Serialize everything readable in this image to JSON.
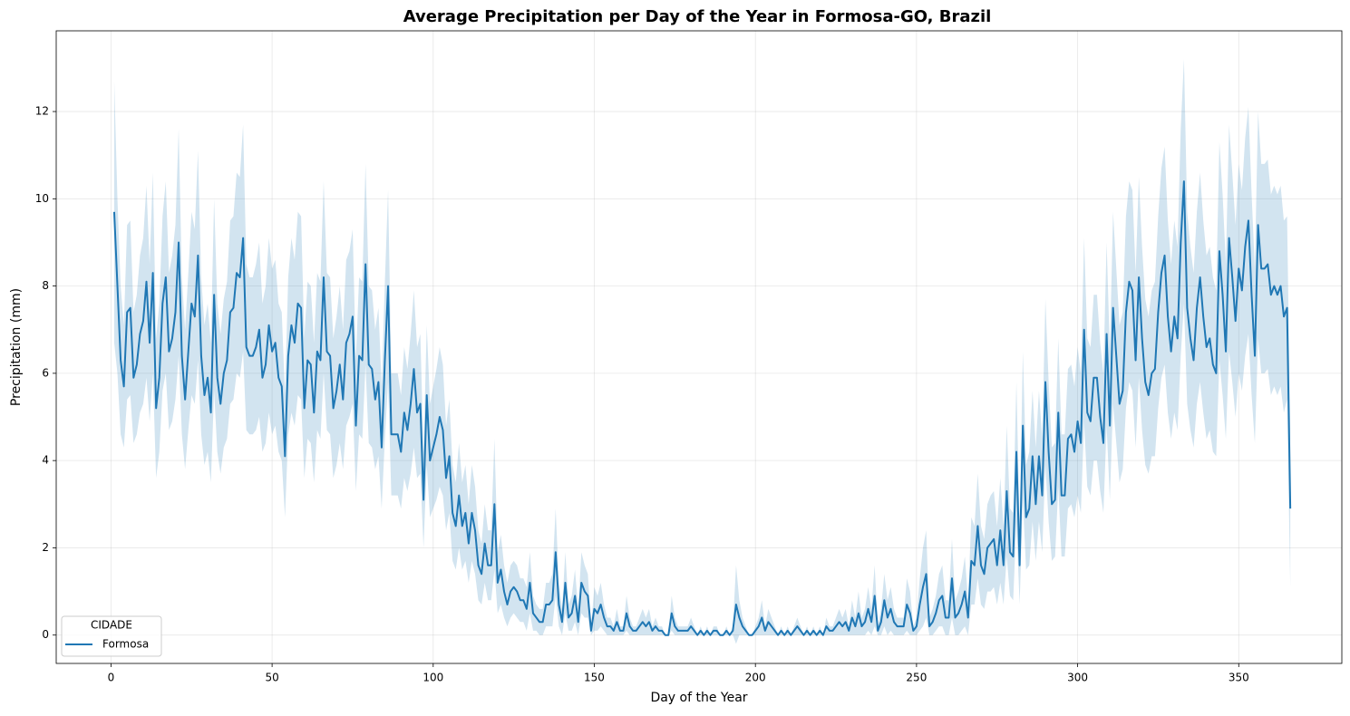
{
  "chart_data": {
    "type": "line",
    "title": "Average Precipitation per Day of the Year in Formosa-GO, Brazil",
    "xlabel": "Day of the Year",
    "ylabel": "Precipitation (mm)",
    "x": [
      1,
      2,
      3,
      4,
      5,
      6,
      7,
      8,
      9,
      10,
      11,
      12,
      13,
      14,
      15,
      16,
      17,
      18,
      19,
      20,
      21,
      22,
      23,
      24,
      25,
      26,
      27,
      28,
      29,
      30,
      31,
      32,
      33,
      34,
      35,
      36,
      37,
      38,
      39,
      40,
      41,
      42,
      43,
      44,
      45,
      46,
      47,
      48,
      49,
      50,
      51,
      52,
      53,
      54,
      55,
      56,
      57,
      58,
      59,
      60,
      61,
      62,
      63,
      64,
      65,
      66,
      67,
      68,
      69,
      70,
      71,
      72,
      73,
      74,
      75,
      76,
      77,
      78,
      79,
      80,
      81,
      82,
      83,
      84,
      85,
      86,
      87,
      88,
      89,
      90,
      91,
      92,
      93,
      94,
      95,
      96,
      97,
      98,
      99,
      100,
      101,
      102,
      103,
      104,
      105,
      106,
      107,
      108,
      109,
      110,
      111,
      112,
      113,
      114,
      115,
      116,
      117,
      118,
      119,
      120,
      121,
      122,
      123,
      124,
      125,
      126,
      127,
      128,
      129,
      130,
      131,
      132,
      133,
      134,
      135,
      136,
      137,
      138,
      139,
      140,
      141,
      142,
      143,
      144,
      145,
      146,
      147,
      148,
      149,
      150,
      151,
      152,
      153,
      154,
      155,
      156,
      157,
      158,
      159,
      160,
      161,
      162,
      163,
      164,
      165,
      166,
      167,
      168,
      169,
      170,
      171,
      172,
      173,
      174,
      175,
      176,
      177,
      178,
      179,
      180,
      181,
      182,
      183,
      184,
      185,
      186,
      187,
      188,
      189,
      190,
      191,
      192,
      193,
      194,
      195,
      196,
      197,
      198,
      199,
      200,
      201,
      202,
      203,
      204,
      205,
      206,
      207,
      208,
      209,
      210,
      211,
      212,
      213,
      214,
      215,
      216,
      217,
      218,
      219,
      220,
      221,
      222,
      223,
      224,
      225,
      226,
      227,
      228,
      229,
      230,
      231,
      232,
      233,
      234,
      235,
      236,
      237,
      238,
      239,
      240,
      241,
      242,
      243,
      244,
      245,
      246,
      247,
      248,
      249,
      250,
      251,
      252,
      253,
      254,
      255,
      256,
      257,
      258,
      259,
      260,
      261,
      262,
      263,
      264,
      265,
      266,
      267,
      268,
      269,
      270,
      271,
      272,
      273,
      274,
      275,
      276,
      277,
      278,
      279,
      280,
      281,
      282,
      283,
      284,
      285,
      286,
      287,
      288,
      289,
      290,
      291,
      292,
      293,
      294,
      295,
      296,
      297,
      298,
      299,
      300,
      301,
      302,
      303,
      304,
      305,
      306,
      307,
      308,
      309,
      310,
      311,
      312,
      313,
      314,
      315,
      316,
      317,
      318,
      319,
      320,
      321,
      322,
      323,
      324,
      325,
      326,
      327,
      328,
      329,
      330,
      331,
      332,
      333,
      334,
      335,
      336,
      337,
      338,
      339,
      340,
      341,
      342,
      343,
      344,
      345,
      346,
      347,
      348,
      349,
      350,
      351,
      352,
      353,
      354,
      355,
      356,
      357,
      358,
      359,
      360,
      361,
      362,
      363,
      364,
      365,
      366
    ],
    "series": [
      {
        "name": "Formosa",
        "color": "#1f77b4",
        "values": [
          9.7,
          8.0,
          6.3,
          5.7,
          7.4,
          7.5,
          5.9,
          6.2,
          6.9,
          7.2,
          8.1,
          6.7,
          8.3,
          5.2,
          5.9,
          7.6,
          8.2,
          6.5,
          6.8,
          7.4,
          9.0,
          6.4,
          5.4,
          6.5,
          7.6,
          7.3,
          8.7,
          6.4,
          5.5,
          5.9,
          5.1,
          7.8,
          5.9,
          5.3,
          6.0,
          6.3,
          7.4,
          7.5,
          8.3,
          8.2,
          9.1,
          6.6,
          6.4,
          6.4,
          6.6,
          7.0,
          5.9,
          6.2,
          7.1,
          6.5,
          6.7,
          5.9,
          5.7,
          4.1,
          6.4,
          7.1,
          6.7,
          7.6,
          7.5,
          5.2,
          6.3,
          6.2,
          5.1,
          6.5,
          6.3,
          8.2,
          6.5,
          6.4,
          5.2,
          5.6,
          6.2,
          5.4,
          6.7,
          6.9,
          7.3,
          4.8,
          6.4,
          6.3,
          8.5,
          6.2,
          6.1,
          5.4,
          5.8,
          4.3,
          6.3,
          8.0,
          4.6,
          4.6,
          4.6,
          4.2,
          5.1,
          4.7,
          5.3,
          6.1,
          5.1,
          5.3,
          3.1,
          5.5,
          4.0,
          4.3,
          4.6,
          5.0,
          4.7,
          3.6,
          4.1,
          2.8,
          2.5,
          3.2,
          2.5,
          2.8,
          2.1,
          2.8,
          2.4,
          1.6,
          1.4,
          2.1,
          1.6,
          1.6,
          3.0,
          1.2,
          1.5,
          1.0,
          0.7,
          1.0,
          1.1,
          1.0,
          0.8,
          0.8,
          0.6,
          1.2,
          0.5,
          0.4,
          0.3,
          0.3,
          0.7,
          0.7,
          0.8,
          1.9,
          0.7,
          0.3,
          1.2,
          0.4,
          0.5,
          0.9,
          0.3,
          1.2,
          1.0,
          0.9,
          0.1,
          0.6,
          0.5,
          0.7,
          0.4,
          0.2,
          0.2,
          0.1,
          0.3,
          0.1,
          0.1,
          0.5,
          0.2,
          0.1,
          0.1,
          0.2,
          0.3,
          0.2,
          0.3,
          0.1,
          0.2,
          0.1,
          0.1,
          0.0,
          0.0,
          0.5,
          0.2,
          0.1,
          0.1,
          0.1,
          0.1,
          0.2,
          0.1,
          0.0,
          0.1,
          0.0,
          0.1,
          0.0,
          0.1,
          0.1,
          0.0,
          0.0,
          0.1,
          0.0,
          0.1,
          0.7,
          0.4,
          0.2,
          0.1,
          0.0,
          0.0,
          0.1,
          0.2,
          0.4,
          0.1,
          0.3,
          0.2,
          0.1,
          0.0,
          0.1,
          0.0,
          0.1,
          0.0,
          0.1,
          0.2,
          0.1,
          0.0,
          0.1,
          0.0,
          0.1,
          0.0,
          0.1,
          0.0,
          0.2,
          0.1,
          0.1,
          0.2,
          0.3,
          0.2,
          0.3,
          0.1,
          0.4,
          0.2,
          0.5,
          0.2,
          0.3,
          0.6,
          0.3,
          0.9,
          0.1,
          0.3,
          0.8,
          0.4,
          0.6,
          0.3,
          0.2,
          0.2,
          0.2,
          0.7,
          0.5,
          0.1,
          0.2,
          0.7,
          1.1,
          1.4,
          0.2,
          0.3,
          0.5,
          0.8,
          0.9,
          0.4,
          0.4,
          1.3,
          0.4,
          0.5,
          0.7,
          1.0,
          0.4,
          1.7,
          1.6,
          2.5,
          1.6,
          1.4,
          2.0,
          2.1,
          2.2,
          1.6,
          2.4,
          1.6,
          3.3,
          1.9,
          1.8,
          4.2,
          1.6,
          4.8,
          2.7,
          2.9,
          4.1,
          3.0,
          4.1,
          3.2,
          5.8,
          4.2,
          3.0,
          3.1,
          5.1,
          3.2,
          3.2,
          4.5,
          4.6,
          4.2,
          4.9,
          4.4,
          7.0,
          5.1,
          4.9,
          5.9,
          5.9,
          5.0,
          4.4,
          6.9,
          4.8,
          7.5,
          6.4,
          5.3,
          5.6,
          7.4,
          8.1,
          7.9,
          6.3,
          8.2,
          6.8,
          5.8,
          5.5,
          6.0,
          6.1,
          7.4,
          8.3,
          8.7,
          7.3,
          6.5,
          7.3,
          6.8,
          9.0,
          10.4,
          7.5,
          6.8,
          6.3,
          7.5,
          8.2,
          7.3,
          6.6,
          6.8,
          6.2,
          6.0,
          8.8,
          7.8,
          6.5,
          9.1,
          8.2,
          7.2,
          8.4,
          7.9,
          8.9,
          9.5,
          7.8,
          6.4,
          9.4,
          8.4,
          8.4,
          8.5,
          7.8,
          8.0,
          7.8,
          8.0,
          7.3,
          7.5,
          2.9
        ],
        "ci": [
          3.0,
          2.0,
          1.7,
          1.4,
          2.0,
          2.0,
          1.5,
          1.6,
          1.8,
          1.9,
          2.2,
          1.8,
          2.3,
          1.6,
          1.7,
          2.0,
          2.2,
          1.8,
          1.9,
          2.0,
          2.6,
          1.8,
          1.6,
          1.8,
          2.1,
          2.0,
          2.4,
          1.8,
          1.6,
          1.7,
          1.6,
          2.2,
          1.7,
          1.6,
          1.7,
          1.8,
          2.1,
          2.1,
          2.3,
          2.3,
          2.6,
          1.9,
          1.8,
          1.8,
          1.9,
          2.0,
          1.7,
          1.8,
          2.0,
          1.9,
          1.9,
          1.7,
          1.7,
          1.4,
          1.8,
          2.0,
          1.9,
          2.1,
          2.1,
          1.6,
          1.8,
          1.8,
          1.6,
          1.8,
          1.8,
          2.2,
          1.8,
          1.8,
          1.6,
          1.7,
          1.8,
          1.6,
          1.9,
          1.9,
          2.0,
          1.5,
          1.8,
          1.8,
          2.3,
          1.8,
          1.8,
          1.6,
          1.7,
          1.4,
          1.8,
          2.2,
          1.4,
          1.4,
          1.4,
          1.3,
          1.5,
          1.4,
          1.6,
          1.8,
          1.5,
          1.6,
          1.1,
          1.6,
          1.3,
          1.4,
          1.5,
          1.6,
          1.5,
          1.2,
          1.3,
          1.1,
          1.0,
          1.2,
          1.0,
          1.1,
          0.9,
          1.1,
          1.0,
          0.8,
          0.7,
          0.9,
          0.8,
          0.8,
          1.5,
          0.7,
          0.8,
          0.6,
          0.5,
          0.6,
          0.6,
          0.6,
          0.5,
          0.5,
          0.5,
          0.7,
          0.4,
          0.3,
          0.3,
          0.3,
          0.5,
          0.5,
          0.6,
          1.0,
          0.5,
          0.3,
          0.7,
          0.3,
          0.4,
          0.6,
          0.3,
          0.7,
          0.6,
          0.5,
          0.1,
          0.5,
          0.4,
          0.5,
          0.3,
          0.2,
          0.2,
          0.1,
          0.3,
          0.1,
          0.1,
          0.4,
          0.2,
          0.1,
          0.1,
          0.2,
          0.3,
          0.2,
          0.3,
          0.1,
          0.2,
          0.1,
          0.1,
          0.0,
          0.0,
          0.4,
          0.2,
          0.1,
          0.1,
          0.1,
          0.1,
          0.2,
          0.1,
          0.0,
          0.1,
          0.0,
          0.1,
          0.0,
          0.1,
          0.1,
          0.0,
          0.0,
          0.1,
          0.0,
          0.1,
          0.9,
          0.4,
          0.2,
          0.1,
          0.0,
          0.0,
          0.1,
          0.2,
          0.4,
          0.1,
          0.3,
          0.2,
          0.1,
          0.0,
          0.1,
          0.0,
          0.1,
          0.0,
          0.1,
          0.2,
          0.1,
          0.0,
          0.1,
          0.0,
          0.1,
          0.0,
          0.1,
          0.0,
          0.2,
          0.1,
          0.1,
          0.2,
          0.3,
          0.2,
          0.3,
          0.1,
          0.4,
          0.2,
          0.5,
          0.2,
          0.3,
          0.5,
          0.3,
          0.7,
          0.1,
          0.3,
          0.6,
          0.4,
          0.5,
          0.3,
          0.2,
          0.2,
          0.2,
          0.6,
          0.5,
          0.1,
          0.2,
          0.6,
          0.9,
          1.0,
          0.2,
          0.3,
          0.4,
          0.6,
          0.7,
          0.4,
          0.4,
          0.9,
          0.4,
          0.5,
          0.6,
          0.8,
          0.4,
          1.0,
          0.9,
          1.2,
          0.9,
          0.8,
          1.0,
          1.1,
          1.1,
          0.9,
          1.2,
          0.9,
          1.5,
          1.0,
          1.0,
          1.6,
          0.9,
          1.7,
          1.2,
          1.3,
          1.5,
          1.3,
          1.5,
          1.3,
          1.9,
          1.6,
          1.3,
          1.3,
          1.7,
          1.4,
          1.4,
          1.6,
          1.6,
          1.5,
          1.7,
          1.6,
          2.1,
          1.7,
          1.7,
          1.9,
          1.9,
          1.7,
          1.6,
          2.1,
          1.7,
          2.2,
          2.0,
          1.8,
          1.8,
          2.2,
          2.3,
          2.3,
          2.0,
          2.3,
          2.1,
          1.9,
          1.8,
          1.9,
          2.0,
          2.2,
          2.4,
          2.5,
          2.2,
          2.0,
          2.2,
          2.1,
          2.6,
          2.8,
          2.2,
          2.1,
          2.0,
          2.2,
          2.4,
          2.2,
          2.1,
          2.1,
          2.0,
          1.9,
          2.5,
          2.3,
          2.0,
          2.6,
          2.4,
          2.2,
          2.4,
          2.3,
          2.5,
          2.6,
          2.3,
          2.0,
          2.6,
          2.4,
          2.4,
          2.4,
          2.3,
          2.3,
          2.3,
          2.3,
          2.2,
          2.1,
          1.8
        ]
      }
    ],
    "xlim": [
      -17,
      382
    ],
    "ylim": [
      -0.65,
      13.85
    ],
    "xticks": [
      0,
      50,
      100,
      150,
      200,
      250,
      300,
      350
    ],
    "yticks": [
      0,
      2,
      4,
      6,
      8,
      10,
      12
    ],
    "grid": true,
    "legend_title": "CIDADE",
    "legend_loc": "lower left"
  }
}
